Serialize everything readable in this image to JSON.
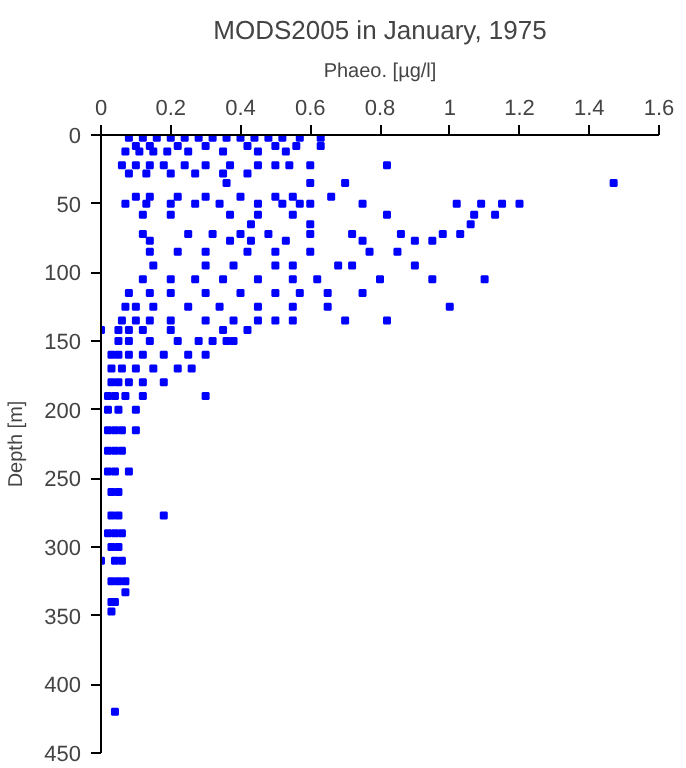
{
  "chart_data": {
    "type": "scatter",
    "title": "MODS2005 in January, 1975",
    "xlabel": "Phaeo. [µg/l]",
    "ylabel": "Depth [m]",
    "xlim": [
      0,
      1.6
    ],
    "xticks": [
      0,
      0.2,
      0.4,
      0.6,
      0.8,
      1,
      1.2,
      1.4,
      1.6
    ],
    "ylim": [
      450,
      0
    ],
    "yticks": [
      0,
      50,
      100,
      150,
      200,
      250,
      300,
      350,
      400,
      450
    ],
    "grid": false,
    "marker": "square",
    "series": [
      {
        "color": "#0000ff",
        "x": [
          0.08,
          0.12,
          0.16,
          0.2,
          0.24,
          0.28,
          0.32,
          0.36,
          0.4,
          0.44,
          0.48,
          0.52,
          0.57,
          0.63,
          0.1,
          0.14,
          0.22,
          0.3,
          0.42,
          0.5,
          0.56,
          0.63,
          0.07,
          0.11,
          0.15,
          0.19,
          0.25,
          0.35,
          0.45,
          0.53,
          0.06,
          0.1,
          0.14,
          0.18,
          0.24,
          0.3,
          0.37,
          0.45,
          0.5,
          0.54,
          0.6,
          0.82,
          0.08,
          0.13,
          0.2,
          0.27,
          0.35,
          0.42,
          0.36,
          0.6,
          0.7,
          1.47,
          0.1,
          0.14,
          0.22,
          0.3,
          0.4,
          0.5,
          0.55,
          0.66,
          0.07,
          0.13,
          0.2,
          0.27,
          0.34,
          0.45,
          0.52,
          0.6,
          0.75,
          1.02,
          1.09,
          1.15,
          1.2,
          0.57,
          0.12,
          0.2,
          0.37,
          0.45,
          0.55,
          0.82,
          1.07,
          1.13,
          0.43,
          0.6,
          1.06,
          0.12,
          0.25,
          0.32,
          0.4,
          0.48,
          0.6,
          0.72,
          0.86,
          0.98,
          1.03,
          0.14,
          0.37,
          0.43,
          0.53,
          0.75,
          0.9,
          0.95,
          0.14,
          0.22,
          0.3,
          0.42,
          0.5,
          0.6,
          0.77,
          0.85,
          0.15,
          0.3,
          0.38,
          0.5,
          0.55,
          0.68,
          0.72,
          0.9,
          0.12,
          0.2,
          0.27,
          0.35,
          0.45,
          0.55,
          0.62,
          0.8,
          0.95,
          1.1,
          0.08,
          0.14,
          0.2,
          0.3,
          0.4,
          0.5,
          0.57,
          0.65,
          0.75,
          0.07,
          0.1,
          0.15,
          0.25,
          0.34,
          0.45,
          0.55,
          0.65,
          1.0,
          0.06,
          0.1,
          0.14,
          0.2,
          0.3,
          0.38,
          0.45,
          0.5,
          0.55,
          0.7,
          0.82,
          0.0,
          0.05,
          0.08,
          0.12,
          0.2,
          0.35,
          0.42,
          0.05,
          0.08,
          0.14,
          0.22,
          0.28,
          0.32,
          0.36,
          0.38,
          0.03,
          0.05,
          0.08,
          0.12,
          0.18,
          0.25,
          0.3,
          0.03,
          0.06,
          0.1,
          0.15,
          0.22,
          0.26,
          0.03,
          0.05,
          0.08,
          0.12,
          0.18,
          0.02,
          0.04,
          0.07,
          0.12,
          0.3,
          0.02,
          0.05,
          0.1,
          0.02,
          0.04,
          0.06,
          0.1,
          0.02,
          0.04,
          0.06,
          0.02,
          0.04,
          0.08,
          0.03,
          0.05,
          0.03,
          0.05,
          0.18,
          0.02,
          0.04,
          0.06,
          0.03,
          0.05,
          0.0,
          0.04,
          0.06,
          0.03,
          0.05,
          0.07,
          0.07,
          0.03,
          0.04,
          0.03,
          0.04
        ],
        "values": [
          2,
          2,
          2,
          2,
          2,
          2,
          2,
          2,
          2,
          2,
          2,
          2,
          2,
          2,
          8,
          8,
          8,
          8,
          8,
          8,
          8,
          8,
          12,
          12,
          12,
          12,
          12,
          12,
          12,
          12,
          22,
          22,
          22,
          22,
          22,
          22,
          22,
          22,
          22,
          22,
          22,
          22,
          28,
          28,
          28,
          28,
          28,
          28,
          35,
          35,
          35,
          35,
          45,
          45,
          45,
          45,
          45,
          45,
          45,
          45,
          50,
          50,
          50,
          50,
          50,
          50,
          50,
          50,
          50,
          50,
          50,
          50,
          50,
          50,
          58,
          58,
          58,
          58,
          58,
          58,
          58,
          58,
          65,
          65,
          65,
          72,
          72,
          72,
          72,
          72,
          72,
          72,
          72,
          72,
          72,
          77,
          77,
          77,
          77,
          77,
          77,
          77,
          85,
          85,
          85,
          85,
          85,
          85,
          85,
          85,
          95,
          95,
          95,
          95,
          95,
          95,
          95,
          95,
          105,
          105,
          105,
          105,
          105,
          105,
          105,
          105,
          105,
          105,
          115,
          115,
          115,
          115,
          115,
          115,
          115,
          115,
          115,
          125,
          125,
          125,
          125,
          125,
          125,
          125,
          125,
          125,
          135,
          135,
          135,
          135,
          135,
          135,
          135,
          135,
          135,
          135,
          135,
          142,
          142,
          142,
          142,
          142,
          142,
          142,
          150,
          150,
          150,
          150,
          150,
          150,
          150,
          150,
          160,
          160,
          160,
          160,
          160,
          160,
          160,
          170,
          170,
          170,
          170,
          170,
          170,
          180,
          180,
          180,
          180,
          180,
          190,
          190,
          190,
          190,
          190,
          200,
          200,
          200,
          215,
          215,
          215,
          215,
          230,
          230,
          230,
          245,
          245,
          245,
          260,
          260,
          277,
          277,
          277,
          290,
          290,
          290,
          300,
          300,
          310,
          310,
          310,
          325,
          325,
          325,
          333,
          340,
          340,
          347,
          420
        ]
      }
    ]
  }
}
